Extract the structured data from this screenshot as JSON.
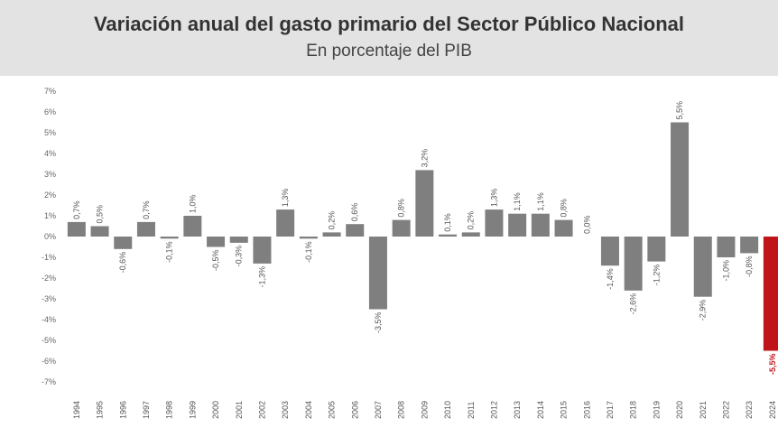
{
  "header": {
    "title": "Variación anual del gasto primario del Sector Público Nacional",
    "subtitle": "En porcentaje del PIB"
  },
  "colors": {
    "bar": "#7f7f7f",
    "highlight": "#c0141b",
    "header_bg": "#e3e3e3",
    "axis_text": "#666666"
  },
  "chart_data": {
    "type": "bar",
    "title": "Variación anual del gasto primario del Sector Público Nacional",
    "subtitle": "En porcentaje del PIB",
    "xlabel": "",
    "ylabel": "",
    "ylim": [
      -7,
      7
    ],
    "yticks": [
      7,
      6,
      5,
      4,
      3,
      2,
      1,
      0,
      -1,
      -2,
      -3,
      -4,
      -5,
      -6,
      -7
    ],
    "ytick_labels": [
      "7%",
      "6%",
      "5%",
      "4%",
      "3%",
      "2%",
      "1%",
      "0%",
      "-1%",
      "-2%",
      "-3%",
      "-4%",
      "-5%",
      "-6%",
      "-7%"
    ],
    "grid": false,
    "categories": [
      "1994",
      "1995",
      "1996",
      "1997",
      "1998",
      "1999",
      "2000",
      "2001",
      "2002",
      "2003",
      "2004",
      "2005",
      "2006",
      "2007",
      "2008",
      "2009",
      "2010",
      "2011",
      "2012",
      "2013",
      "2014",
      "2015",
      "2016",
      "2017",
      "2018",
      "2019",
      "2020",
      "2021",
      "2022",
      "2023",
      "2024"
    ],
    "values": [
      0.7,
      0.5,
      -0.6,
      0.7,
      -0.1,
      1.0,
      -0.5,
      -0.3,
      -1.3,
      1.3,
      -0.1,
      0.2,
      0.6,
      -3.5,
      0.8,
      3.2,
      0.1,
      0.2,
      1.3,
      1.1,
      1.1,
      0.8,
      0.0,
      -1.4,
      -2.6,
      -1.2,
      5.5,
      -2.9,
      -1.0,
      -0.8,
      -5.5
    ],
    "data_labels": [
      "0,7%",
      "0,5%",
      "-0,6%",
      "0,7%",
      "-0,1%",
      "1,0%",
      "-0,5%",
      "-0,3%",
      "-1,3%",
      "1,3%",
      "-0,1%",
      "0,2%",
      "0,6%",
      "-3,5%",
      "0,8%",
      "3,2%",
      "0,1%",
      "0,2%",
      "1,3%",
      "1,1%",
      "1,1%",
      "0,8%",
      "0,0%",
      "-1,4%",
      "-2,6%",
      "-1,2%",
      "5,5%",
      "-2,9%",
      "-1,0%",
      "-0,8%",
      "-5,5%"
    ],
    "highlight_category": "2024"
  }
}
